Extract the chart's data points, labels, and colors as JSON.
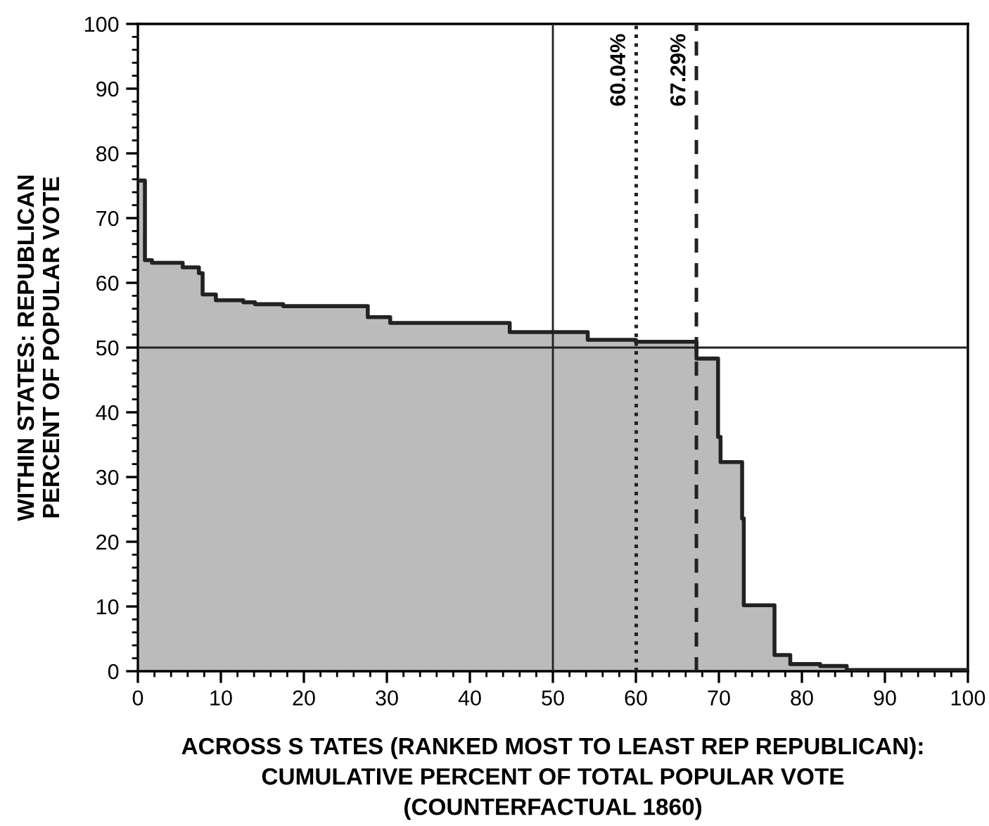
{
  "chart_data": {
    "type": "step",
    "xlabel": "ACROSS S TATES (RANKED MOST TO LEAST REP REPUBLICAN):\nCUMULATIVE PERCENT OF TOTAL POPULAR VOTE\n(COUNTERFACTUAL 1860)",
    "ylabel": "WITHIN STATES: REPUBLICAN\nPERCENT OF POPULAR VOTE",
    "series": [
      {
        "color": "#222222",
        "x": [
          0,
          0.85,
          1.7,
          5.4,
          7.35,
          7.8,
          9.4,
          12.7,
          14.1,
          17.5,
          27.7,
          30.4,
          44.8,
          54.2,
          60.0,
          67.3,
          69.9,
          70.2,
          72.8,
          73.0,
          76.7,
          78.6,
          82.2,
          85.4,
          100
        ],
        "values": [
          75.8,
          63.5,
          63.1,
          62.4,
          61.5,
          58.2,
          57.3,
          57.0,
          56.7,
          56.4,
          54.7,
          53.8,
          52.4,
          51.2,
          50.9,
          48.3,
          36.2,
          32.3,
          23.6,
          10.2,
          2.5,
          1.1,
          0.8,
          0.2,
          0.2
        ]
      }
    ],
    "xlim": [
      0,
      100
    ],
    "ylim": [
      0,
      100
    ],
    "xticks": [
      0,
      10,
      20,
      30,
      40,
      50,
      60,
      70,
      80,
      90,
      100
    ],
    "yticks": [
      0,
      10,
      20,
      30,
      40,
      50,
      60,
      70,
      80,
      90,
      100
    ],
    "ref_lines": [
      {
        "axis": "x",
        "value": 50,
        "label": null,
        "color": "#222222",
        "line_style": "solid"
      },
      {
        "axis": "y",
        "value": 50,
        "label": null,
        "color": "#222222",
        "line_style": "solid"
      },
      {
        "axis": "x",
        "value": 60.04,
        "label": "60.04%",
        "color": "#222222",
        "line_style": "dotted"
      },
      {
        "axis": "x",
        "value": 67.29,
        "label": "67.29%",
        "color": "#222222",
        "line_style": "dashed"
      }
    ],
    "grid": false,
    "legend": false
  }
}
